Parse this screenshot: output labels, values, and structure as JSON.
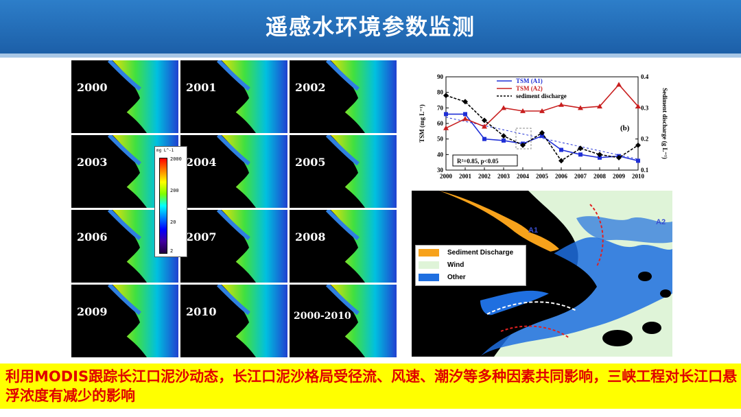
{
  "title": "遥感水环境参数监测",
  "years": [
    "2000",
    "2001",
    "2002",
    "2003",
    "2004",
    "2005",
    "2006",
    "2007",
    "2008",
    "2009",
    "2010",
    "2000-2010"
  ],
  "colorbar": {
    "unit": "mg L^-1",
    "ticks": [
      "2000",
      "200",
      "20",
      "2"
    ]
  },
  "chart_data": {
    "type": "line",
    "panel_label": "(b)",
    "x": [
      2000,
      2001,
      2002,
      2003,
      2004,
      2005,
      2006,
      2007,
      2008,
      2009,
      2010
    ],
    "series": [
      {
        "name": "TSM (A1)",
        "color": "#1f2fd6",
        "axis": "left",
        "values": [
          66,
          66,
          50,
          49,
          47,
          52,
          43,
          40,
          38,
          39,
          36
        ]
      },
      {
        "name": "TSM (A2)",
        "color": "#c81e1e",
        "axis": "left",
        "values": [
          57,
          63,
          58,
          70,
          68,
          68,
          72,
          70,
          71,
          85,
          71
        ]
      },
      {
        "name": "sediment discharge",
        "color": "#000000",
        "axis": "right",
        "values": [
          0.34,
          0.32,
          0.26,
          0.21,
          0.18,
          0.22,
          0.13,
          0.17,
          0.15,
          0.14,
          0.18
        ]
      }
    ],
    "ylabel": "TSM (mg L⁻¹)",
    "y2label": "Sediment discharge (g L⁻¹)",
    "ylim": [
      30,
      90
    ],
    "y2lim": [
      0.1,
      0.4
    ],
    "yticks": [
      30,
      40,
      50,
      60,
      70,
      80,
      90
    ],
    "y2ticks": [
      0.1,
      0.2,
      0.3,
      0.4
    ],
    "annotation": "R²=0.85, p<0.05"
  },
  "map": {
    "legend": [
      {
        "label": "Sediment Discharge",
        "color": "#f7a21b"
      },
      {
        "label": "Wind",
        "color": "#dff4d8"
      },
      {
        "label": "Other",
        "color": "#1f6fe0"
      }
    ],
    "labels": {
      "a1": "A1",
      "a2": "A2"
    }
  },
  "caption": "利用MODIS跟踪长江口泥沙动态，长江口泥沙格局受径流、风速、潮汐等多种因素共同影响，三峡工程对长江口悬浮浓度有减少的影响"
}
